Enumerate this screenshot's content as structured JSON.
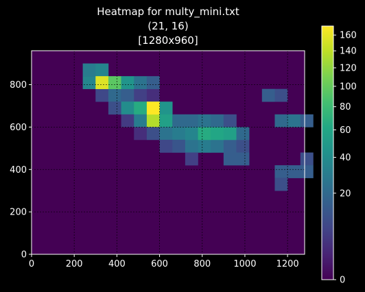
{
  "chart_data": {
    "type": "heatmap",
    "title_lines": [
      "Heatmap for multy_mini.txt",
      "(21, 16)",
      "[1280x960]"
    ],
    "xlim": [
      0,
      1280
    ],
    "ylim": [
      0,
      960
    ],
    "x_ticks": [
      0,
      200,
      400,
      600,
      800,
      1000,
      1200
    ],
    "y_ticks": [
      0,
      200,
      400,
      600,
      800
    ],
    "colorbar": {
      "scale": "sqrt",
      "range": [
        0,
        172
      ],
      "ticks": [
        0,
        20,
        40,
        60,
        80,
        100,
        120,
        140,
        160
      ]
    },
    "cells": [
      {
        "x": 240,
        "y": 780,
        "v": 35
      },
      {
        "x": 300,
        "y": 780,
        "v": 40
      },
      {
        "x": 240,
        "y": 840,
        "v": 30
      },
      {
        "x": 300,
        "y": 840,
        "v": 35
      },
      {
        "x": 300,
        "y": 720,
        "v": 8
      },
      {
        "x": 360,
        "y": 720,
        "v": 20
      },
      {
        "x": 420,
        "y": 720,
        "v": 15
      },
      {
        "x": 480,
        "y": 720,
        "v": 6
      },
      {
        "x": 540,
        "y": 720,
        "v": 3
      },
      {
        "x": 300,
        "y": 780,
        "v": 155
      },
      {
        "x": 360,
        "y": 780,
        "v": 95
      },
      {
        "x": 420,
        "y": 780,
        "v": 45
      },
      {
        "x": 480,
        "y": 780,
        "v": 25
      },
      {
        "x": 540,
        "y": 780,
        "v": 15
      },
      {
        "x": 360,
        "y": 660,
        "v": 10
      },
      {
        "x": 420,
        "y": 660,
        "v": 40
      },
      {
        "x": 480,
        "y": 660,
        "v": 65
      },
      {
        "x": 540,
        "y": 660,
        "v": 70
      },
      {
        "x": 600,
        "y": 660,
        "v": 45
      },
      {
        "x": 420,
        "y": 600,
        "v": 5
      },
      {
        "x": 480,
        "y": 600,
        "v": 30
      },
      {
        "x": 540,
        "y": 600,
        "v": 135
      },
      {
        "x": 600,
        "y": 600,
        "v": 55
      },
      {
        "x": 660,
        "y": 600,
        "v": 20
      },
      {
        "x": 540,
        "y": 660,
        "v": 172
      },
      {
        "x": 480,
        "y": 540,
        "v": 3
      },
      {
        "x": 540,
        "y": 540,
        "v": 10
      },
      {
        "x": 600,
        "y": 540,
        "v": 25
      },
      {
        "x": 660,
        "y": 540,
        "v": 30
      },
      {
        "x": 600,
        "y": 480,
        "v": 8
      },
      {
        "x": 660,
        "y": 480,
        "v": 12
      },
      {
        "x": 720,
        "y": 480,
        "v": 25
      },
      {
        "x": 780,
        "y": 480,
        "v": 30
      },
      {
        "x": 840,
        "y": 480,
        "v": 25
      },
      {
        "x": 900,
        "y": 480,
        "v": 15
      },
      {
        "x": 960,
        "y": 480,
        "v": 10
      },
      {
        "x": 720,
        "y": 540,
        "v": 35
      },
      {
        "x": 780,
        "y": 540,
        "v": 65
      },
      {
        "x": 840,
        "y": 540,
        "v": 60
      },
      {
        "x": 900,
        "y": 540,
        "v": 55
      },
      {
        "x": 960,
        "y": 540,
        "v": 20
      },
      {
        "x": 720,
        "y": 600,
        "v": 20
      },
      {
        "x": 780,
        "y": 600,
        "v": 25
      },
      {
        "x": 840,
        "y": 600,
        "v": 20
      },
      {
        "x": 900,
        "y": 600,
        "v": 10
      },
      {
        "x": 720,
        "y": 420,
        "v": 6
      },
      {
        "x": 900,
        "y": 420,
        "v": 15
      },
      {
        "x": 960,
        "y": 420,
        "v": 15
      },
      {
        "x": 1080,
        "y": 720,
        "v": 15
      },
      {
        "x": 1140,
        "y": 720,
        "v": 10
      },
      {
        "x": 1140,
        "y": 600,
        "v": 20
      },
      {
        "x": 1200,
        "y": 600,
        "v": 25
      },
      {
        "x": 1260,
        "y": 600,
        "v": 15
      },
      {
        "x": 1260,
        "y": 420,
        "v": 10
      },
      {
        "x": 1140,
        "y": 360,
        "v": 15
      },
      {
        "x": 1200,
        "y": 360,
        "v": 15
      },
      {
        "x": 1260,
        "y": 360,
        "v": 15
      },
      {
        "x": 1140,
        "y": 300,
        "v": 10
      }
    ],
    "cell_size": [
      60,
      60
    ]
  }
}
